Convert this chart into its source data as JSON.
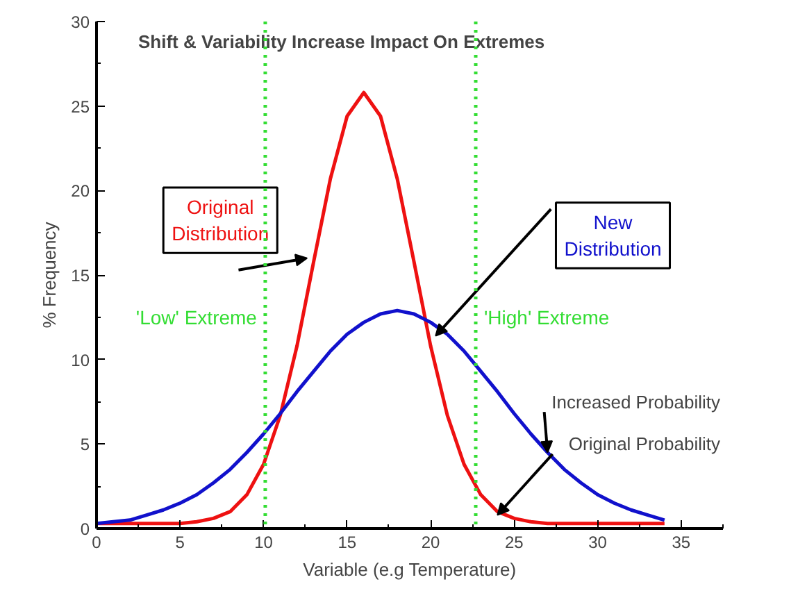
{
  "chart_data": {
    "type": "line",
    "title": "Shift & Variability Increase Impact On Extremes",
    "xlabel": "Variable (e.g Temperature)",
    "ylabel": "% Frequency",
    "x": [
      0,
      1,
      2,
      3,
      4,
      5,
      6,
      7,
      8,
      9,
      10,
      11,
      12,
      13,
      14,
      15,
      16,
      17,
      18,
      19,
      20,
      21,
      22,
      23,
      24,
      25,
      26,
      27,
      28,
      29,
      30,
      31,
      32,
      33,
      34
    ],
    "series": [
      {
        "name": "Original Distribution",
        "color": "#ee1111",
        "values": [
          0.3,
          0.3,
          0.3,
          0.3,
          0.3,
          0.3,
          0.4,
          0.6,
          1.0,
          2.0,
          3.8,
          6.7,
          10.8,
          15.8,
          20.7,
          24.4,
          25.8,
          24.4,
          20.7,
          15.8,
          10.8,
          6.7,
          3.8,
          2.0,
          1.0,
          0.6,
          0.4,
          0.3,
          0.3,
          0.3,
          0.3,
          0.3,
          0.3,
          0.3,
          0.3
        ]
      },
      {
        "name": "New Distribution",
        "color": "#1111cc",
        "values": [
          0.3,
          0.4,
          0.5,
          0.8,
          1.1,
          1.5,
          2.0,
          2.7,
          3.5,
          4.5,
          5.6,
          6.8,
          8.1,
          9.3,
          10.5,
          11.5,
          12.2,
          12.7,
          12.9,
          12.7,
          12.2,
          11.5,
          10.5,
          9.3,
          8.1,
          6.8,
          5.6,
          4.5,
          3.5,
          2.7,
          2.0,
          1.5,
          1.1,
          0.8,
          0.5
        ]
      }
    ],
    "xlim": [
      0,
      37.5
    ],
    "ylim": [
      0,
      30
    ],
    "xticks": [
      0,
      5,
      10,
      15,
      20,
      25,
      30,
      35
    ],
    "yticks": [
      0,
      5,
      10,
      15,
      20,
      25,
      30
    ],
    "ref_lines": [
      {
        "axis": "x",
        "value": 10.1,
        "label": "'Low' Extreme",
        "color": "#33dd33",
        "line_style": "dotted"
      },
      {
        "axis": "x",
        "value": 22.7,
        "label": "'High' Extreme",
        "color": "#33dd33",
        "line_style": "dotted"
      }
    ],
    "annotations": [
      {
        "text": "Increased Probability",
        "x": 27,
        "y": 4.5
      },
      {
        "text": "Original Probability",
        "x": 24,
        "y": 0.8
      }
    ],
    "grid": false,
    "marker": "none",
    "line_style": "solid"
  }
}
